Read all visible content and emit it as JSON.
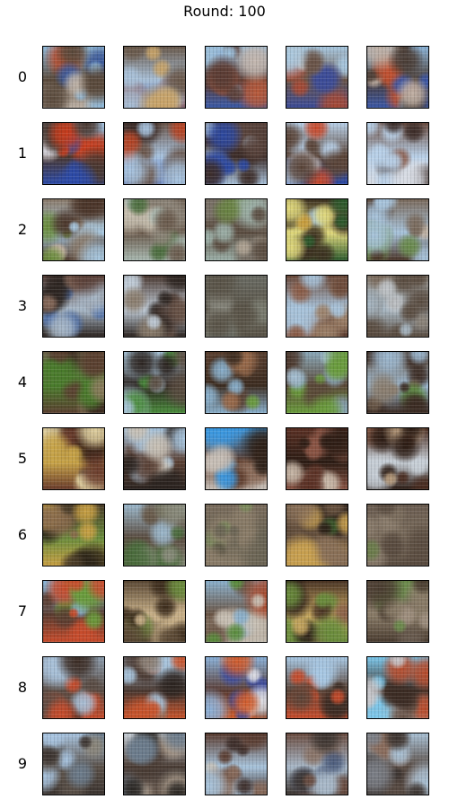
{
  "title": "Round: 100",
  "rows": [
    {
      "label": "0",
      "images": [
        {
          "palette": [
            "#8fb8d8",
            "#5a4a3c",
            "#c0b4a8",
            "#3c5a9c",
            "#b84a2a"
          ]
        },
        {
          "palette": [
            "#6a5a4c",
            "#a8c0d8",
            "#3c4a8c",
            "#c8a46a",
            "#8a3a2a"
          ]
        },
        {
          "palette": [
            "#9cc0dc",
            "#5a3c34",
            "#3c5aa8",
            "#c4b8b0",
            "#b85a3a"
          ]
        },
        {
          "palette": [
            "#a8c8e0",
            "#6a5448",
            "#3c4c98",
            "#d0c4b8",
            "#a84a34"
          ]
        },
        {
          "palette": [
            "#8cb4d8",
            "#4a3c34",
            "#3c58a8",
            "#c0b0a4",
            "#c05030"
          ]
        }
      ]
    },
    {
      "label": "1",
      "images": [
        {
          "palette": [
            "#a8c8e8",
            "#4a3830",
            "#2c4aa8",
            "#c83c1c",
            "#e0e0e8"
          ]
        },
        {
          "palette": [
            "#6a5448",
            "#a8c4e0",
            "#2c44a0",
            "#b84424",
            "#3c2c28"
          ]
        },
        {
          "palette": [
            "#5a443c",
            "#3c2c28",
            "#a8c0d8",
            "#2c48a0",
            "#8a6a58"
          ]
        },
        {
          "palette": [
            "#b8d0e8",
            "#5a4438",
            "#2c4aa8",
            "#c84a2c",
            "#d8d8e0"
          ]
        },
        {
          "palette": [
            "#6a4c40",
            "#b8d0e8",
            "#d8dce4",
            "#3c2c28",
            "#8a5a48"
          ]
        }
      ]
    },
    {
      "label": "2",
      "images": [
        {
          "palette": [
            "#8a7a6a",
            "#a8c8e0",
            "#4a3428",
            "#6a8c3c",
            "#c4b4a0"
          ]
        },
        {
          "palette": [
            "#8c8478",
            "#6a5a4c",
            "#a8b8b0",
            "#4a6c3c",
            "#c8c0b0"
          ]
        },
        {
          "palette": [
            "#7a7268",
            "#5a4c40",
            "#9cb0a8",
            "#6a8444",
            "#b0a494"
          ]
        },
        {
          "palette": [
            "#3c3020",
            "#e0d87c",
            "#2c5a2c",
            "#a8c8e0",
            "#c89c3c"
          ]
        },
        {
          "palette": [
            "#7a6a5c",
            "#a8c4dc",
            "#4a3428",
            "#6a8c4c",
            "#c0b0a0"
          ]
        }
      ]
    },
    {
      "label": "3",
      "images": [
        {
          "palette": [
            "#5a4038",
            "#a8b8c8",
            "#2c2420",
            "#8a6c5c",
            "#4a6ca8"
          ]
        },
        {
          "palette": [
            "#4a3830",
            "#c0ccd8",
            "#2c2420",
            "#8a7c6c",
            "#6a5448"
          ]
        },
        {
          "palette": [
            "#6a6c64",
            "#5a5448",
            "#7a7c70",
            "#4a4438",
            "#8a8a80"
          ]
        },
        {
          "palette": [
            "#6a4838",
            "#a8c4dc",
            "#8a5a44",
            "#5a3c30",
            "#9c8068"
          ]
        },
        {
          "palette": [
            "#8a8278",
            "#a8b8c4",
            "#5a4c40",
            "#c0c4c8",
            "#7a6a5c"
          ]
        }
      ]
    },
    {
      "label": "4",
      "images": [
        {
          "palette": [
            "#6a6048",
            "#4a7c2c",
            "#5a4030",
            "#8a7a5c",
            "#3c2c20"
          ]
        },
        {
          "palette": [
            "#a8c4d8",
            "#2c2420",
            "#4a8c3c",
            "#8a7c6c",
            "#5a4c40"
          ]
        },
        {
          "palette": [
            "#5a4030",
            "#3c2c20",
            "#8ab0cc",
            "#6a9c3c",
            "#9c6c4c"
          ]
        },
        {
          "palette": [
            "#8aa8b8",
            "#5a4838",
            "#6a9c3c",
            "#a8c4d8",
            "#4a3428"
          ]
        },
        {
          "palette": [
            "#6a5848",
            "#9cb8d0",
            "#3c2c24",
            "#5a8c3c",
            "#8a7c6c"
          ]
        }
      ]
    },
    {
      "label": "5",
      "images": [
        {
          "palette": [
            "#3c2418",
            "#c8a448",
            "#6a3c2c",
            "#e0d0a0",
            "#1c1410"
          ]
        },
        {
          "palette": [
            "#a8c4dc",
            "#5a4034",
            "#2c2420",
            "#8a6c5c",
            "#c8c0b4"
          ]
        },
        {
          "palette": [
            "#3c98e0",
            "#5a3828",
            "#c8c0b8",
            "#2c2018",
            "#8a6a58"
          ]
        },
        {
          "palette": [
            "#5a3024",
            "#2c1c14",
            "#8a5444",
            "#c8b8a8",
            "#6a4034"
          ]
        },
        {
          "palette": [
            "#4a2c20",
            "#c8d0d8",
            "#2c1c14",
            "#8a5c48",
            "#b89c7c"
          ]
        }
      ]
    },
    {
      "label": "6",
      "images": [
        {
          "palette": [
            "#4a3c28",
            "#6a8c3c",
            "#c8a044",
            "#2c2418",
            "#8a6c4c"
          ]
        },
        {
          "palette": [
            "#9cb8cc",
            "#5a4c40",
            "#8a8c7c",
            "#4a6c3c",
            "#6a5c4c"
          ]
        },
        {
          "palette": [
            "#7a6c5c",
            "#6a6454",
            "#8a7c68",
            "#5a5444",
            "#7c8c5c"
          ]
        },
        {
          "palette": [
            "#2c2018",
            "#6a5440",
            "#c8a050",
            "#3c5c2c",
            "#8a7058"
          ]
        },
        {
          "palette": [
            "#6a5c50",
            "#7a6c5c",
            "#5a4c40",
            "#8a7c6c",
            "#6c7c4c"
          ]
        }
      ]
    },
    {
      "label": "7",
      "images": [
        {
          "palette": [
            "#8cb8dc",
            "#5a3c30",
            "#c84c2c",
            "#6a9c3c",
            "#3c2420"
          ]
        },
        {
          "palette": [
            "#5a4834",
            "#c8b088",
            "#3c2c1c",
            "#6a8c3c",
            "#8a6848"
          ]
        },
        {
          "palette": [
            "#8ab0cc",
            "#6a5444",
            "#c8c0b4",
            "#5a8c3c",
            "#a84c30"
          ]
        },
        {
          "palette": [
            "#4a3424",
            "#c8a860",
            "#6a8c3c",
            "#2c2018",
            "#8a6048"
          ]
        },
        {
          "palette": [
            "#6a5c50",
            "#8a7c68",
            "#4a3c30",
            "#6c8c4c",
            "#a09080"
          ]
        }
      ]
    },
    {
      "label": "8",
      "images": [
        {
          "palette": [
            "#8c9cac",
            "#5a4c44",
            "#c84c2c",
            "#a8c0d8",
            "#3c2c24"
          ]
        },
        {
          "palette": [
            "#a8c4dc",
            "#4a3830",
            "#c8542c",
            "#8a7c70",
            "#2c2420"
          ]
        },
        {
          "palette": [
            "#8ab0d8",
            "#5a3c34",
            "#d05c2c",
            "#3c4ca0",
            "#e0e0e4"
          ]
        },
        {
          "palette": [
            "#a8c8e4",
            "#5a4438",
            "#c84c2c",
            "#3c2c24",
            "#c8c4c0"
          ]
        },
        {
          "palette": [
            "#7cc8ec",
            "#3c2c24",
            "#c8c8cc",
            "#6a5448",
            "#b84c2c"
          ]
        }
      ]
    },
    {
      "label": "9",
      "images": [
        {
          "palette": [
            "#a8c4e0",
            "#5a5048",
            "#3c3430",
            "#8a8478",
            "#6c7c8c"
          ]
        },
        {
          "palette": [
            "#c8d0d8",
            "#4a3c34",
            "#6c7c8c",
            "#2c2824",
            "#a89888"
          ]
        },
        {
          "palette": [
            "#5a3c30",
            "#a8c4dc",
            "#3c2c28",
            "#8a6c5c",
            "#c8c0b4"
          ]
        },
        {
          "palette": [
            "#6a4c40",
            "#a8b8c8",
            "#3c3430",
            "#8a7468",
            "#4c5c7c"
          ]
        },
        {
          "palette": [
            "#a8c0d4",
            "#5a4c44",
            "#3c3430",
            "#7c8088",
            "#8a6c5c"
          ]
        }
      ]
    }
  ]
}
